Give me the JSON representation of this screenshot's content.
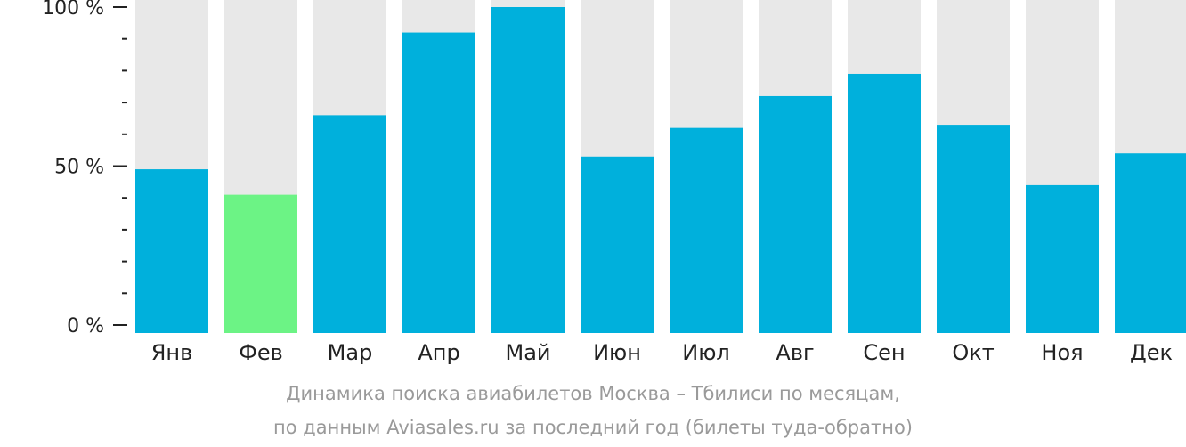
{
  "chart_data": {
    "type": "bar",
    "categories": [
      "Янв",
      "Фев",
      "Мар",
      "Апр",
      "Май",
      "Июн",
      "Июл",
      "Авг",
      "Сен",
      "Окт",
      "Ноя",
      "Дек"
    ],
    "values": [
      49,
      41,
      66,
      92,
      100,
      53,
      62,
      72,
      79,
      63,
      44,
      54
    ],
    "ylim": [
      0,
      100
    ],
    "y_ticks": [
      {
        "value": 0,
        "label": "0 %"
      },
      {
        "value": 50,
        "label": "50 %"
      },
      {
        "value": 100,
        "label": "100 %"
      }
    ],
    "minor_tick_step": 10,
    "highlight_index": 1,
    "grid": false,
    "caption": [
      "Динамика поиска авиабилетов Москва – Тбилиси по месяцам,",
      "по данным Aviasales.ru за последний год (билеты туда-обратно)"
    ],
    "colors": {
      "bar": "#00b0dc",
      "highlight": "#6cf385",
      "track": "#e8e8e8",
      "axis": "#222222"
    }
  }
}
